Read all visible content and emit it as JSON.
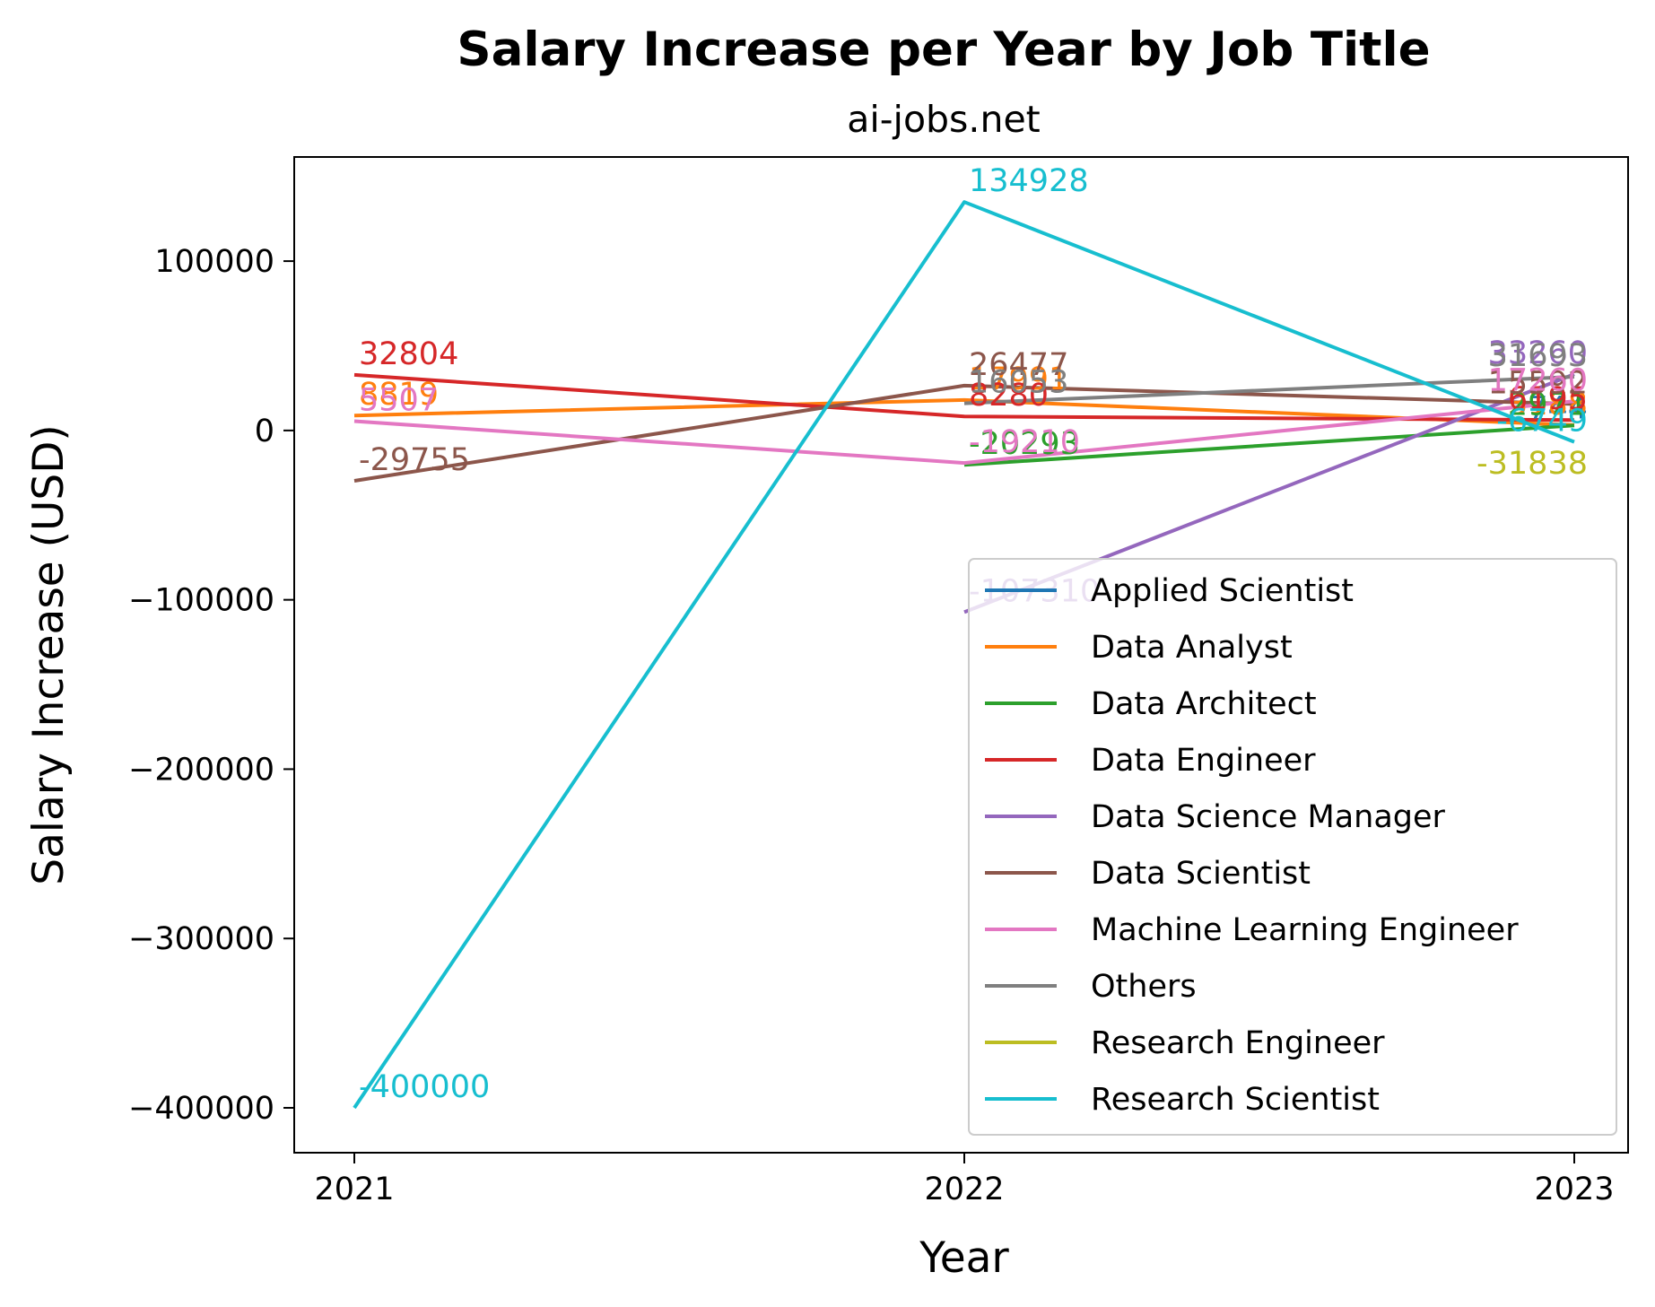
{
  "chart_data": {
    "type": "line",
    "title": "Salary Increase per Year by Job Title",
    "subtitle": "ai-jobs.net",
    "xlabel": "Year",
    "ylabel": "Salary Increase (USD)",
    "x": [
      2021,
      2022,
      2023
    ],
    "x_tick_labels": [
      "2021",
      "2022",
      "2023"
    ],
    "ylim": [
      -426500,
      161500
    ],
    "y_ticks": [
      100000,
      0,
      -100000,
      -200000,
      -300000,
      -400000
    ],
    "y_tick_labels": [
      "100000",
      "0",
      "−100000",
      "−200000",
      "−300000",
      "−400000"
    ],
    "grid": false,
    "legend_position": "lower-right",
    "series": [
      {
        "name": "Applied Scientist",
        "color": "#1f77b4",
        "x": [
          2023
        ],
        "values": [
          744
        ],
        "labels": [
          "744"
        ]
      },
      {
        "name": "Data Analyst",
        "color": "#ff7f0e",
        "x": [
          2021,
          2022,
          2023
        ],
        "values": [
          8819,
          17991,
          3188
        ],
        "labels": [
          "8819",
          "17991",
          "3188"
        ]
      },
      {
        "name": "Data Architect",
        "color": "#2ca02c",
        "x": [
          2022,
          2023
        ],
        "values": [
          -20293,
          2971
        ],
        "labels": [
          "-20293",
          "2971"
        ]
      },
      {
        "name": "Data Engineer",
        "color": "#d62728",
        "x": [
          2021,
          2022,
          2023
        ],
        "values": [
          32804,
          8280,
          6195
        ],
        "labels": [
          "32804",
          "8280",
          "6195"
        ]
      },
      {
        "name": "Data Science Manager",
        "color": "#9467bd",
        "x": [
          2022,
          2023
        ],
        "values": [
          -107310,
          33260
        ],
        "labels": [
          "-107310",
          "33260"
        ]
      },
      {
        "name": "Data Scientist",
        "color": "#8c564b",
        "x": [
          2021,
          2022,
          2023
        ],
        "values": [
          -29755,
          26477,
          15592
        ],
        "labels": [
          "-29755",
          "26477",
          "15592"
        ]
      },
      {
        "name": "Machine Learning Engineer",
        "color": "#e377c2",
        "x": [
          2021,
          2022,
          2023
        ],
        "values": [
          5507,
          -19210,
          17260
        ],
        "labels": [
          "5507",
          "-19210",
          "17260"
        ]
      },
      {
        "name": "Others",
        "color": "#7f7f7f",
        "x": [
          2022,
          2023
        ],
        "values": [
          16053,
          31693
        ],
        "labels": [
          "16053",
          "31693"
        ]
      },
      {
        "name": "Research Engineer",
        "color": "#bcbd22",
        "x": [
          2023
        ],
        "values": [
          -31838
        ],
        "labels": [
          "-31838"
        ]
      },
      {
        "name": "Research Scientist",
        "color": "#17becf",
        "x": [
          2021,
          2022,
          2023
        ],
        "values": [
          -400000,
          134928,
          -6749
        ],
        "labels": [
          "-400000",
          "134928",
          "-6749"
        ]
      }
    ]
  }
}
